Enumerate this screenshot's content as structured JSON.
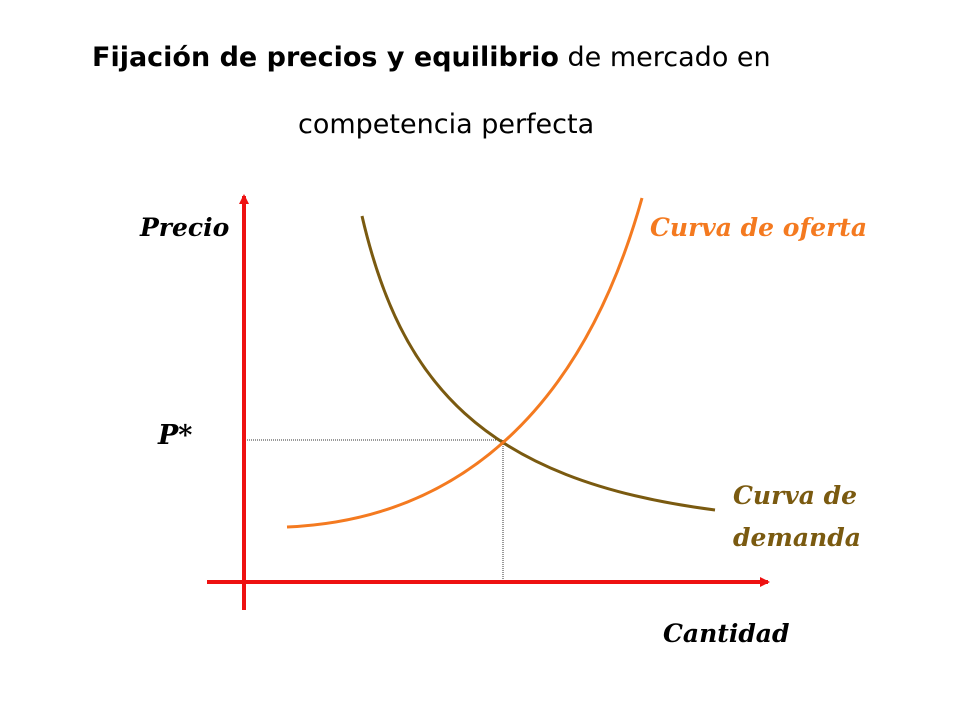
{
  "title": {
    "bold_part": "Fijación de precios y equilibrio",
    "normal_part": " de mercado en",
    "line2": "competencia perfecta"
  },
  "axes": {
    "y_label": "Precio",
    "x_label": "Cantidad",
    "color": "#ee1111"
  },
  "supply": {
    "label": "Curva de oferta",
    "color": "#f47a20"
  },
  "demand": {
    "label_line1": "Curva de",
    "label_line2": "demanda",
    "color": "#7a5a10"
  },
  "equilibrium": {
    "price_label": "P*"
  }
}
